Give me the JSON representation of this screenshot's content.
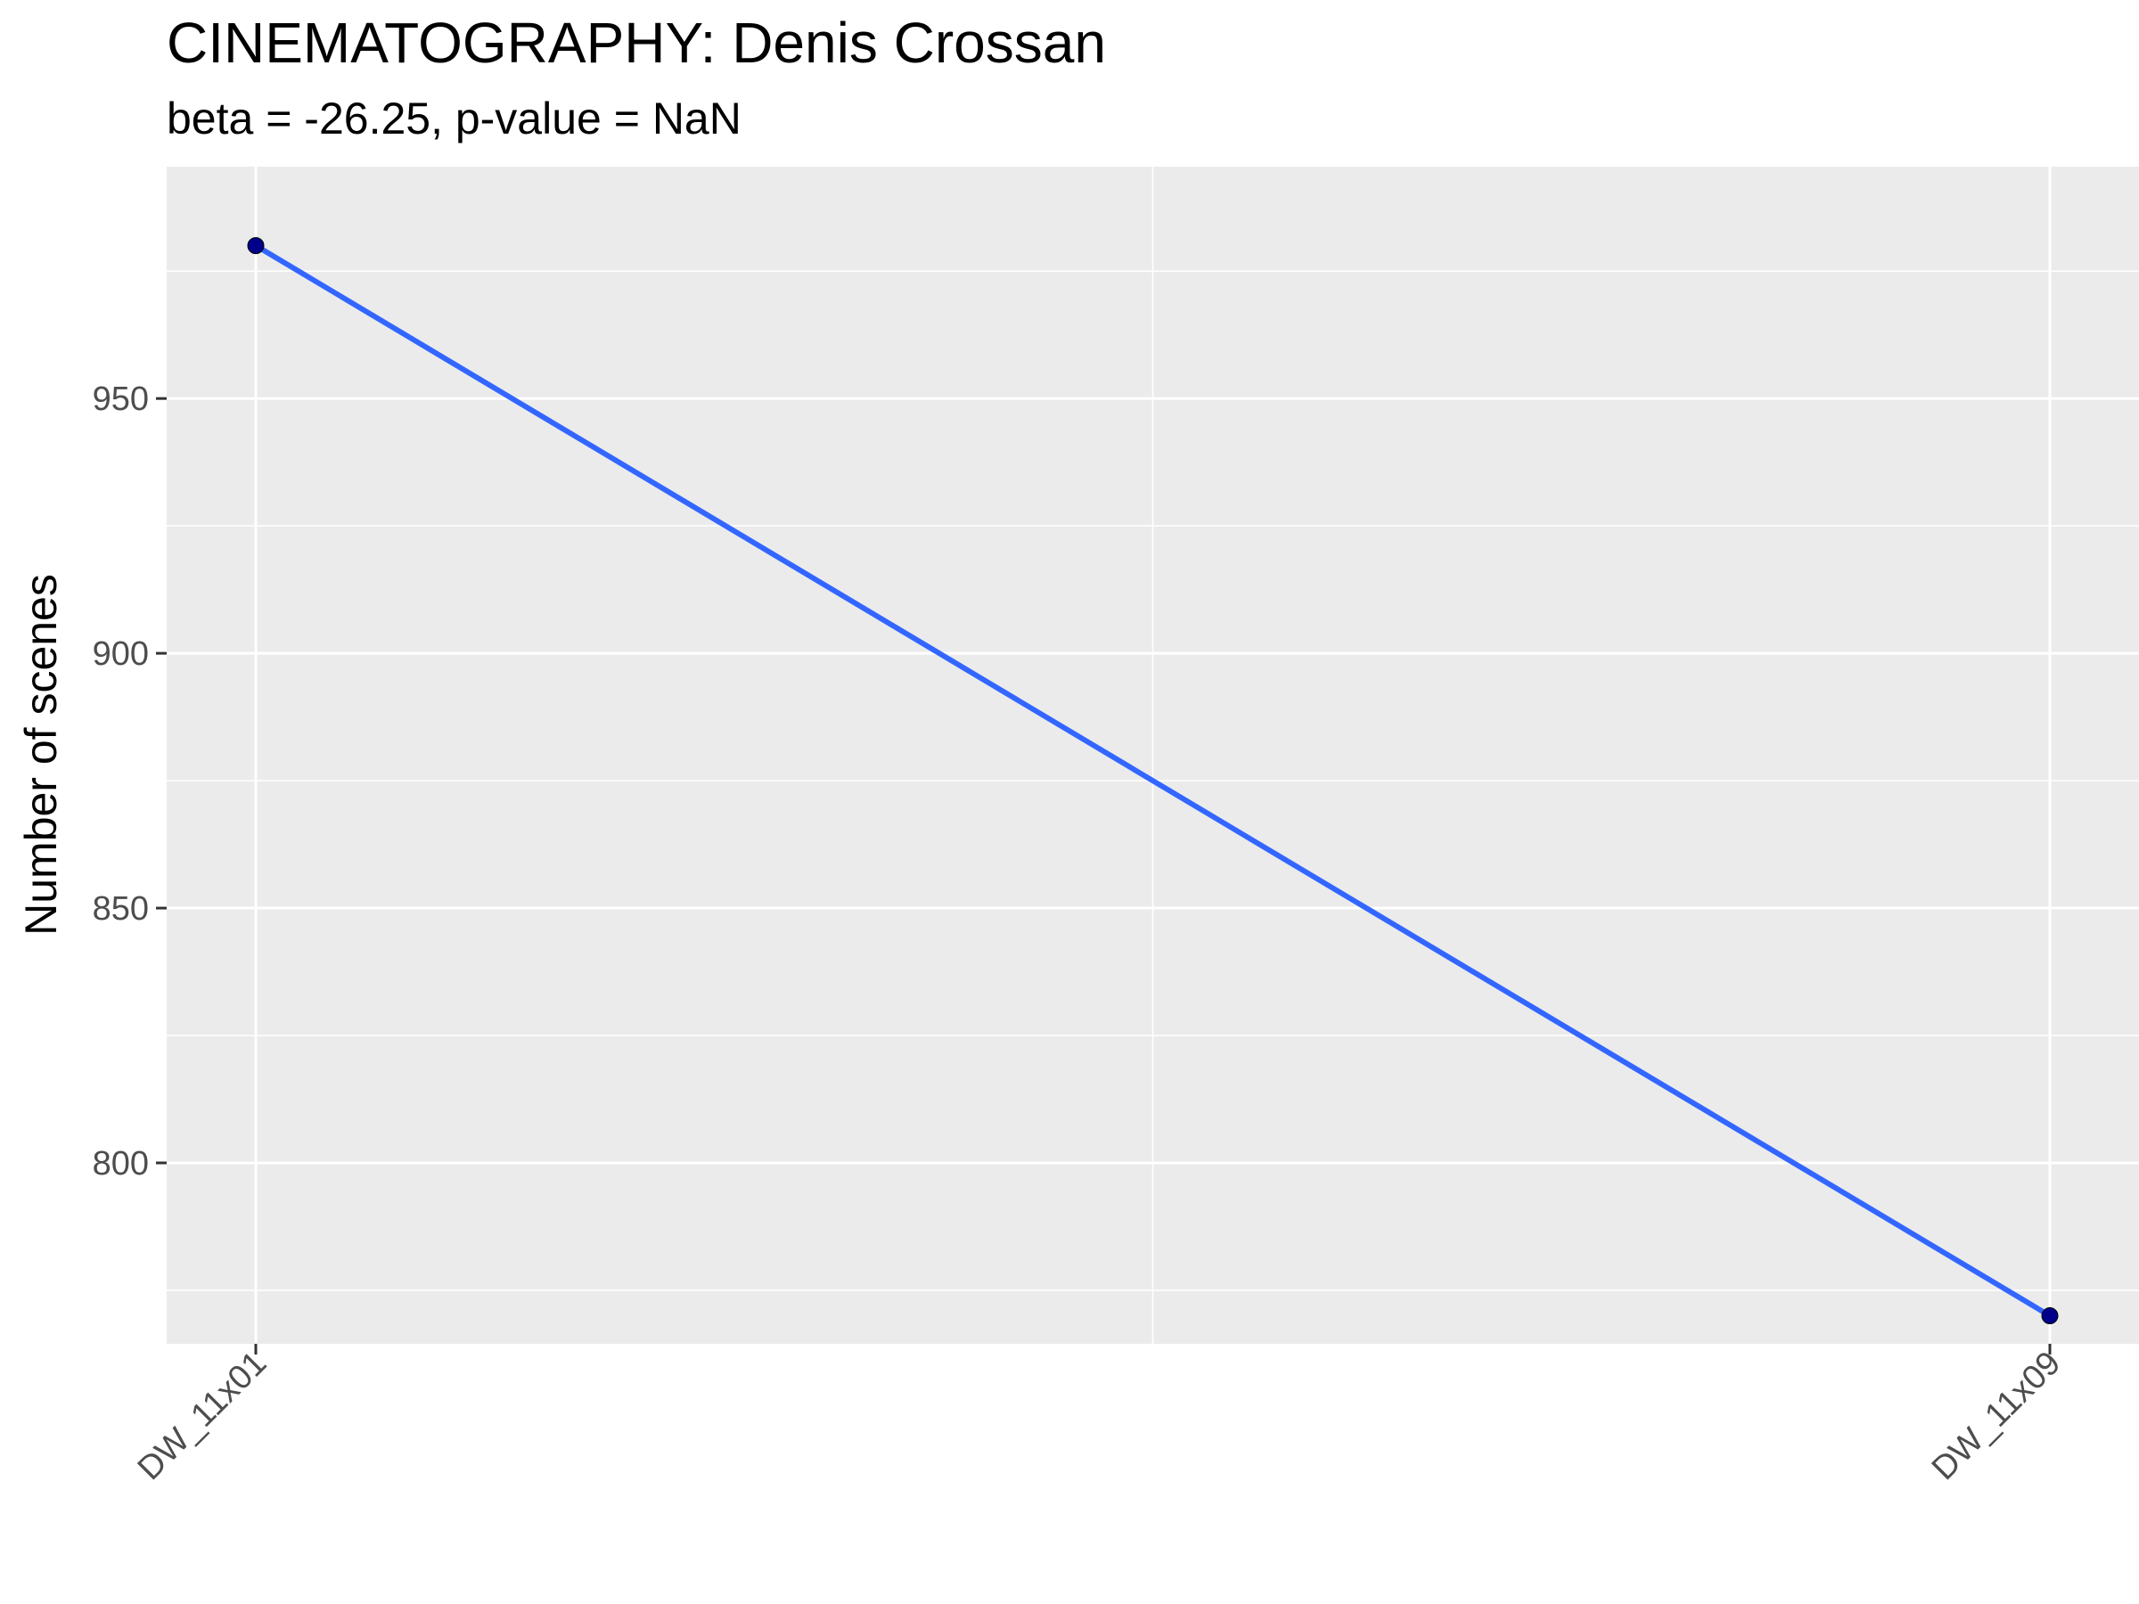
{
  "chart_data": {
    "type": "line",
    "title": "CINEMATOGRAPHY: Denis Crossan",
    "subtitle": "beta = -26.25, p-value = NaN",
    "xlabel": "",
    "ylabel": "Number of scenes",
    "categories": [
      "DW_11x01",
      "DW_11x09"
    ],
    "series": [
      {
        "values": [
          980,
          770
        ]
      }
    ],
    "ylim": [
      764.5,
      995.5
    ],
    "yticks": [
      800,
      850,
      900,
      950
    ],
    "grid": true,
    "colors": {
      "panel": "#ebebeb",
      "grid": "#ffffff",
      "line": "#3366ff",
      "points": "#00008b",
      "tick_text": "#4d4d4d",
      "tick_mark": "#333333"
    }
  }
}
